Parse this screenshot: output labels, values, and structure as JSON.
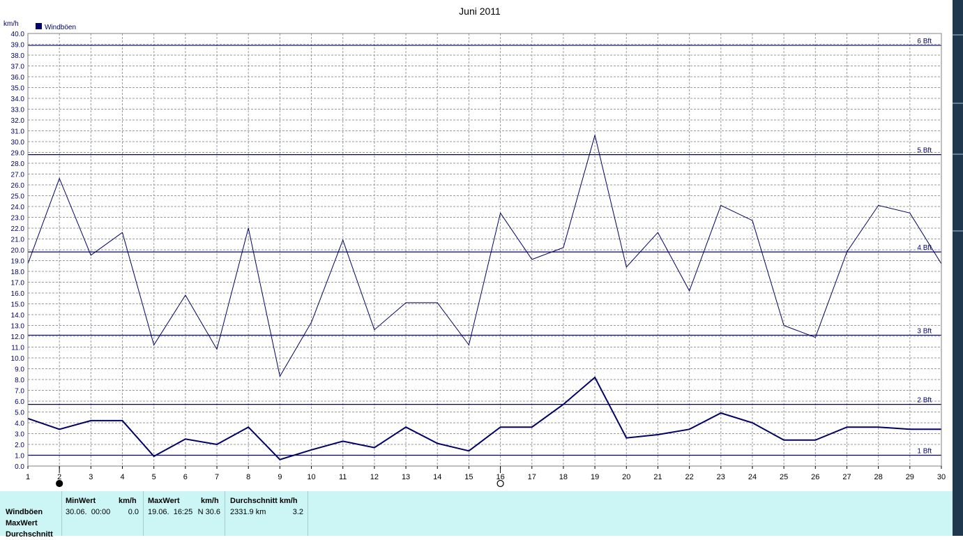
{
  "chart_data": {
    "type": "line",
    "title": "Juni 2011",
    "ylabel": "km/h",
    "xlabel": "",
    "x": [
      1,
      2,
      3,
      4,
      5,
      6,
      7,
      8,
      9,
      10,
      11,
      12,
      13,
      14,
      15,
      16,
      17,
      18,
      19,
      20,
      21,
      22,
      23,
      24,
      25,
      26,
      27,
      28,
      29,
      30
    ],
    "xticks": [
      "1",
      "2",
      "3",
      "4",
      "5",
      "6",
      "7",
      "8",
      "9",
      "10",
      "11",
      "12",
      "13",
      "14",
      "15",
      "16",
      "17",
      "18",
      "19",
      "20",
      "21",
      "22",
      "23",
      "24",
      "25",
      "26",
      "27",
      "28",
      "29",
      "30"
    ],
    "ylim": [
      0,
      40
    ],
    "yticks": [
      "0.0",
      "1.0",
      "2.0",
      "3.0",
      "4.0",
      "5.0",
      "6.0",
      "7.0",
      "8.0",
      "9.0",
      "10.0",
      "11.0",
      "12.0",
      "13.0",
      "14.0",
      "15.0",
      "16.0",
      "17.0",
      "18.0",
      "19.0",
      "20.0",
      "21.0",
      "22.0",
      "23.0",
      "24.0",
      "25.0",
      "26.0",
      "27.0",
      "28.0",
      "29.0",
      "30.0",
      "31.0",
      "32.0",
      "33.0",
      "34.0",
      "35.0",
      "36.0",
      "37.0",
      "38.0",
      "39.0",
      "40.0"
    ],
    "grid": true,
    "legend_position": "top-left",
    "legend": [
      "Windböen"
    ],
    "series": [
      {
        "name": "Windböen",
        "color": "#000066",
        "values": [
          18.7,
          26.6,
          19.5,
          21.6,
          11.2,
          15.8,
          10.8,
          22.0,
          8.3,
          13.3,
          20.9,
          12.6,
          15.1,
          15.1,
          11.2,
          23.4,
          19.1,
          20.2,
          30.6,
          18.4,
          21.6,
          16.2,
          24.1,
          22.7,
          13.0,
          11.9,
          19.8,
          24.1,
          23.4,
          18.7
        ]
      },
      {
        "color": "#000066",
        "values": [
          4.4,
          3.4,
          4.2,
          4.2,
          0.9,
          2.5,
          2.0,
          3.6,
          0.6,
          1.5,
          2.3,
          1.7,
          3.6,
          2.1,
          1.4,
          3.6,
          3.6,
          5.7,
          8.2,
          2.6,
          2.9,
          3.4,
          4.9,
          4.0,
          2.4,
          2.4,
          3.6,
          3.6,
          3.4,
          3.4
        ]
      }
    ],
    "reference_lines": [
      {
        "label": "1 Bft",
        "value": 1.0
      },
      {
        "label": "2 Bft",
        "value": 5.7
      },
      {
        "label": "3 Bft",
        "value": 12.1
      },
      {
        "label": "4 Bft",
        "value": 19.8
      },
      {
        "label": "5 Bft",
        "value": 28.8
      },
      {
        "label": "6 Bft",
        "value": 38.9
      }
    ],
    "moon_markers": [
      {
        "day": 2,
        "phase": "full"
      },
      {
        "day": 16,
        "phase": "new"
      }
    ]
  },
  "stats": {
    "row_labels": [
      "Windböen",
      "MaxWert",
      "Durchschnitt"
    ],
    "min_header": "MinWert",
    "min_unit": "km/h",
    "min_date": "30.06.  00:00",
    "min_value": "0.0",
    "max_header": "MaxWert",
    "max_unit": "km/h",
    "max_date": "19.06.  16:25",
    "max_value": "N 30.6",
    "avg_header": "Durchschnitt km/h",
    "avg_distance": "2331.9 km",
    "avg_value": "3.2"
  },
  "colors": {
    "series": "#000066",
    "axis_text": "#000066",
    "grid": "#9a9a9a",
    "panel_bg": "#ccf5f5",
    "frame_dark": "#20384e"
  }
}
